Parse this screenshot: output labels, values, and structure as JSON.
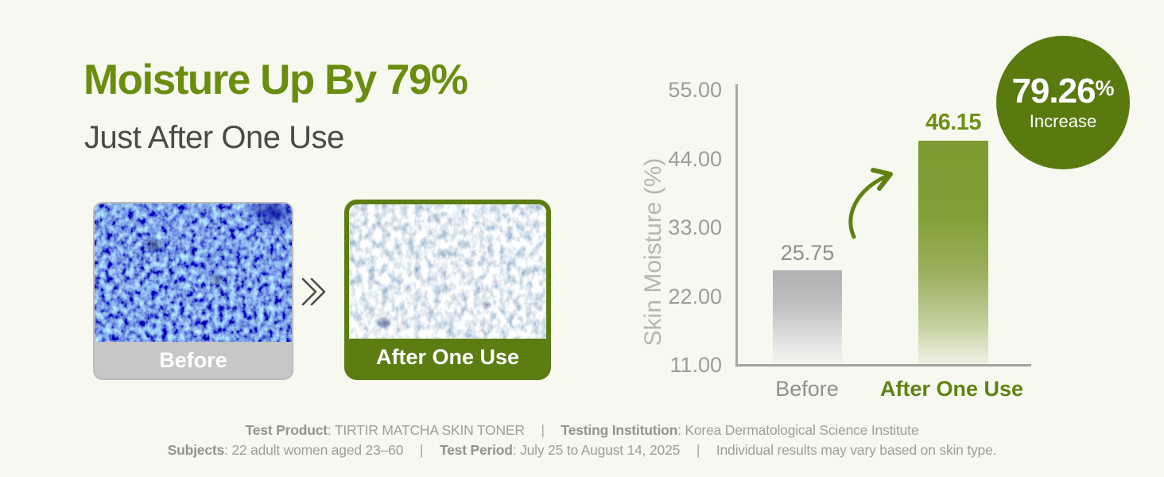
{
  "page": {
    "background": "#f7f8f0",
    "accent_green": "#698e0f"
  },
  "header": {
    "title": "Moisture Up By 79%",
    "subtitle": "Just After One Use"
  },
  "comparison": {
    "before_label": "Before",
    "after_label": "After One Use"
  },
  "chart_data": {
    "type": "bar",
    "title": "",
    "xlabel": "",
    "ylabel": "Skin Moisture (%)",
    "ylim": [
      11,
      55
    ],
    "yticks": [
      "55.00",
      "44.00",
      "33.00",
      "22.00",
      "11.00"
    ],
    "categories": [
      "Before",
      "After One Use"
    ],
    "values": [
      25.75,
      46.15
    ],
    "value_labels": [
      "25.75",
      "46.15"
    ],
    "series_colors": {
      "before_bar": "#b1b1b3",
      "after_bar": "#7d9b31"
    },
    "grid": false,
    "legend": "none",
    "annotation": "79.26% Increase"
  },
  "badge": {
    "value": "79.26",
    "percent_sign": "%",
    "label": "Increase"
  },
  "footer": {
    "test_product_label": "Test Product",
    "test_product_value": ": TIRTIR MATCHA SKIN TONER",
    "testing_institution_label": "Testing Institution",
    "testing_institution_value": ": Korea Dermatological Science Institute",
    "subjects_label": "Subjects",
    "subjects_value": ": 22 adult women aged 23–60",
    "test_period_label": "Test Period",
    "test_period_value": ": July 25 to August 14, 2025",
    "disclaimer": "Individual results may vary based on skin type.",
    "separator": "|"
  }
}
